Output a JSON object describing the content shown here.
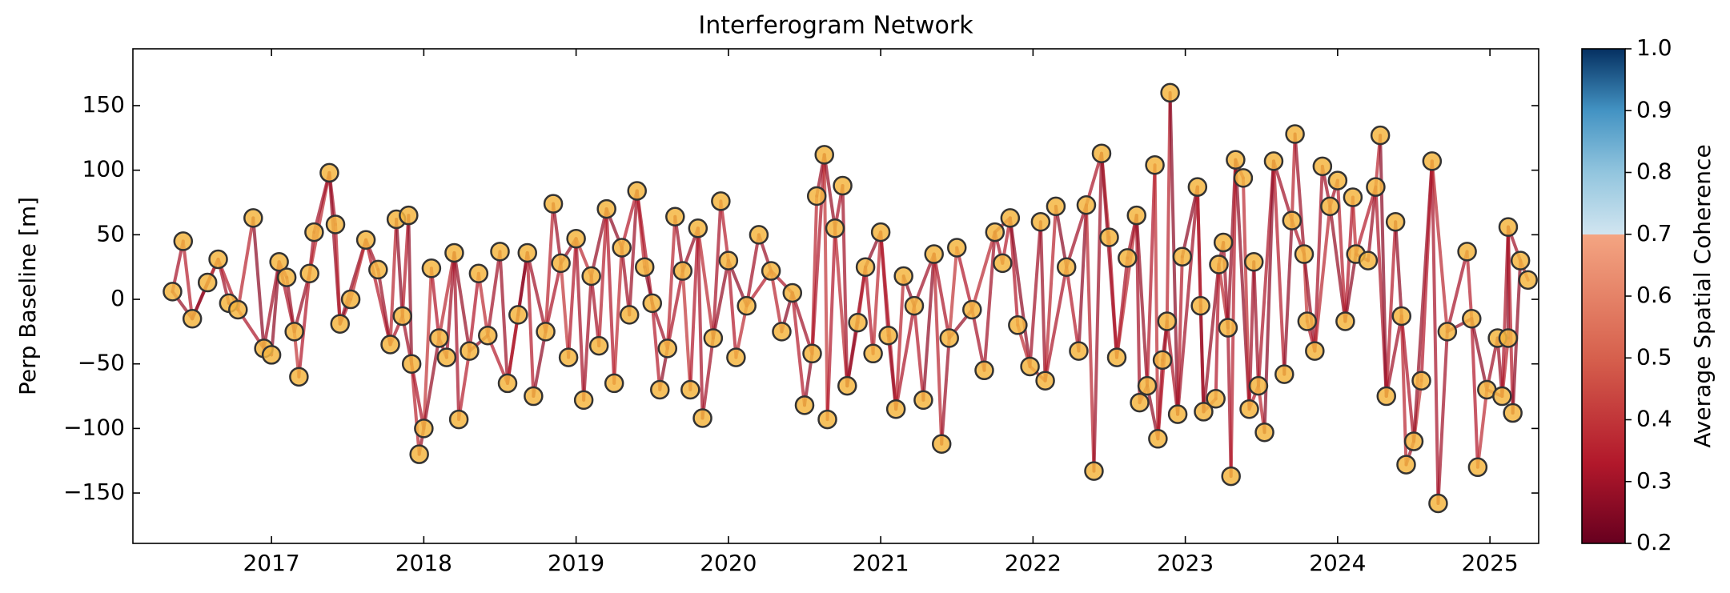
{
  "chart_data": {
    "type": "network",
    "title": "Interferogram Network",
    "ylabel": "Perp Baseline [m]",
    "x": [
      2016.35,
      2016.42,
      2016.48,
      2016.58,
      2016.65,
      2016.72,
      2016.78,
      2016.88,
      2016.95,
      2017.0,
      2017.05,
      2017.1,
      2017.15,
      2017.18,
      2017.25,
      2017.28,
      2017.38,
      2017.42,
      2017.45,
      2017.52,
      2017.62,
      2017.7,
      2017.78,
      2017.82,
      2017.86,
      2017.9,
      2017.92,
      2017.97,
      2018.0,
      2018.05,
      2018.1,
      2018.15,
      2018.2,
      2018.23,
      2018.3,
      2018.36,
      2018.42,
      2018.5,
      2018.55,
      2018.62,
      2018.68,
      2018.72,
      2018.8,
      2018.85,
      2018.9,
      2018.95,
      2019.0,
      2019.05,
      2019.1,
      2019.15,
      2019.2,
      2019.25,
      2019.3,
      2019.35,
      2019.4,
      2019.45,
      2019.5,
      2019.55,
      2019.6,
      2019.65,
      2019.7,
      2019.75,
      2019.8,
      2019.83,
      2019.9,
      2019.95,
      2020.0,
      2020.05,
      2020.12,
      2020.2,
      2020.28,
      2020.35,
      2020.42,
      2020.5,
      2020.55,
      2020.58,
      2020.63,
      2020.65,
      2020.7,
      2020.75,
      2020.78,
      2020.85,
      2020.9,
      2020.95,
      2021.0,
      2021.05,
      2021.1,
      2021.15,
      2021.22,
      2021.28,
      2021.35,
      2021.4,
      2021.45,
      2021.5,
      2021.6,
      2021.68,
      2021.75,
      2021.8,
      2021.85,
      2021.9,
      2021.98,
      2022.05,
      2022.08,
      2022.15,
      2022.22,
      2022.3,
      2022.35,
      2022.4,
      2022.45,
      2022.5,
      2022.55,
      2022.62,
      2022.68,
      2022.7,
      2022.75,
      2022.8,
      2022.82,
      2022.85,
      2022.88,
      2022.9,
      2022.95,
      2022.98,
      2023.08,
      2023.1,
      2023.12,
      2023.2,
      2023.22,
      2023.25,
      2023.28,
      2023.3,
      2023.33,
      2023.38,
      2023.42,
      2023.45,
      2023.48,
      2023.52,
      2023.58,
      2023.65,
      2023.7,
      2023.72,
      2023.78,
      2023.8,
      2023.85,
      2023.9,
      2023.95,
      2024.0,
      2024.05,
      2024.1,
      2024.12,
      2024.2,
      2024.25,
      2024.28,
      2024.32,
      2024.38,
      2024.42,
      2024.45,
      2024.5,
      2024.55,
      2024.62,
      2024.66,
      2024.72,
      2024.85,
      2024.88,
      2024.92,
      2024.98,
      2025.05,
      2025.08,
      2025.12,
      2025.12,
      2025.15,
      2025.2,
      2025.25
    ],
    "values": [
      6,
      45,
      -15,
      13,
      31,
      -3,
      -8,
      63,
      -38,
      -43,
      29,
      17,
      -25,
      -60,
      20,
      52,
      98,
      58,
      -19,
      0,
      46,
      23,
      -35,
      62,
      -13,
      65,
      -50,
      -120,
      -100,
      24,
      -30,
      -45,
      36,
      -93,
      -40,
      20,
      -28,
      37,
      -65,
      -12,
      36,
      -75,
      -25,
      74,
      28,
      -45,
      47,
      -78,
      18,
      -36,
      70,
      -65,
      40,
      -12,
      84,
      25,
      -3,
      -70,
      -38,
      64,
      22,
      -70,
      55,
      -92,
      -30,
      76,
      30,
      -45,
      -5,
      50,
      22,
      -25,
      5,
      -82,
      -42,
      80,
      112,
      -93,
      55,
      88,
      -67,
      -18,
      25,
      -42,
      52,
      -28,
      -85,
      18,
      -5,
      -78,
      35,
      -112,
      -30,
      40,
      -8,
      -55,
      52,
      28,
      63,
      -20,
      -52,
      60,
      -63,
      72,
      25,
      -40,
      73,
      -133,
      113,
      48,
      -45,
      32,
      65,
      -80,
      -67,
      104,
      -108,
      -47,
      -17,
      160,
      -89,
      33,
      87,
      -5,
      -87,
      -77,
      27,
      44,
      -22,
      -137,
      108,
      94,
      -85,
      29,
      -67,
      -103,
      107,
      -58,
      61,
      128,
      35,
      -17,
      -40,
      103,
      72,
      92,
      -17,
      79,
      35,
      30,
      87,
      127,
      -75,
      60,
      -13,
      -128,
      -110,
      -63,
      107,
      -158,
      -25,
      37,
      -15,
      -130,
      -70,
      -30,
      -75,
      -30,
      56,
      -88,
      30,
      15
    ],
    "edges": [
      [
        0,
        1,
        0.31
      ],
      [
        0,
        2,
        0.28
      ],
      [
        1,
        2,
        0.35
      ],
      [
        2,
        3,
        0.33
      ],
      [
        2,
        4,
        0.27
      ],
      [
        3,
        4,
        0.38
      ],
      [
        4,
        5,
        0.3
      ],
      [
        4,
        6,
        0.34
      ],
      [
        5,
        6,
        0.29
      ],
      [
        6,
        7,
        0.36
      ],
      [
        6,
        8,
        0.32
      ],
      [
        7,
        8,
        0.26
      ],
      [
        8,
        9,
        0.34
      ],
      [
        8,
        10,
        0.3
      ],
      [
        9,
        10,
        0.27
      ],
      [
        10,
        11,
        0.36
      ],
      [
        10,
        12,
        0.32
      ],
      [
        11,
        12,
        0.29
      ],
      [
        12,
        13,
        0.4
      ],
      [
        12,
        14,
        0.28
      ],
      [
        13,
        14,
        0.33
      ],
      [
        14,
        15,
        0.31
      ],
      [
        14,
        16,
        0.37
      ],
      [
        15,
        16,
        0.3
      ],
      [
        16,
        17,
        0.31
      ],
      [
        16,
        18,
        0.28
      ],
      [
        17,
        18,
        0.35
      ],
      [
        18,
        19,
        0.33
      ],
      [
        18,
        20,
        0.27
      ],
      [
        19,
        20,
        0.38
      ],
      [
        20,
        21,
        0.3
      ],
      [
        20,
        22,
        0.34
      ],
      [
        21,
        22,
        0.29
      ],
      [
        22,
        23,
        0.36
      ],
      [
        22,
        24,
        0.32
      ],
      [
        23,
        24,
        0.26
      ],
      [
        24,
        25,
        0.34
      ],
      [
        24,
        26,
        0.3
      ],
      [
        25,
        26,
        0.27
      ],
      [
        26,
        27,
        0.36
      ],
      [
        26,
        28,
        0.32
      ],
      [
        27,
        28,
        0.29
      ],
      [
        28,
        29,
        0.4
      ],
      [
        28,
        30,
        0.28
      ],
      [
        29,
        30,
        0.33
      ],
      [
        30,
        31,
        0.31
      ],
      [
        30,
        32,
        0.37
      ],
      [
        31,
        32,
        0.3
      ],
      [
        32,
        33,
        0.31
      ],
      [
        32,
        34,
        0.28
      ],
      [
        33,
        34,
        0.35
      ],
      [
        34,
        35,
        0.33
      ],
      [
        34,
        36,
        0.27
      ],
      [
        35,
        36,
        0.38
      ],
      [
        36,
        37,
        0.3
      ],
      [
        36,
        38,
        0.34
      ],
      [
        37,
        38,
        0.29
      ],
      [
        38,
        39,
        0.36
      ],
      [
        38,
        40,
        0.32
      ],
      [
        39,
        40,
        0.26
      ],
      [
        40,
        41,
        0.34
      ],
      [
        40,
        42,
        0.3
      ],
      [
        41,
        42,
        0.27
      ],
      [
        42,
        43,
        0.36
      ],
      [
        42,
        44,
        0.32
      ],
      [
        43,
        44,
        0.29
      ],
      [
        44,
        45,
        0.4
      ],
      [
        44,
        46,
        0.28
      ],
      [
        45,
        46,
        0.33
      ],
      [
        46,
        47,
        0.31
      ],
      [
        46,
        48,
        0.37
      ],
      [
        47,
        48,
        0.3
      ],
      [
        48,
        49,
        0.31
      ],
      [
        48,
        50,
        0.28
      ],
      [
        49,
        50,
        0.35
      ],
      [
        50,
        51,
        0.33
      ],
      [
        50,
        52,
        0.27
      ],
      [
        51,
        52,
        0.38
      ],
      [
        52,
        53,
        0.3
      ],
      [
        52,
        54,
        0.34
      ],
      [
        53,
        54,
        0.29
      ],
      [
        54,
        55,
        0.36
      ],
      [
        54,
        56,
        0.32
      ],
      [
        55,
        56,
        0.26
      ],
      [
        56,
        57,
        0.34
      ],
      [
        56,
        58,
        0.3
      ],
      [
        57,
        58,
        0.27
      ],
      [
        58,
        59,
        0.36
      ],
      [
        58,
        60,
        0.32
      ],
      [
        59,
        60,
        0.29
      ],
      [
        60,
        61,
        0.4
      ],
      [
        60,
        62,
        0.28
      ],
      [
        61,
        62,
        0.33
      ],
      [
        62,
        63,
        0.31
      ],
      [
        62,
        64,
        0.37
      ],
      [
        63,
        64,
        0.3
      ],
      [
        64,
        65,
        0.31
      ],
      [
        64,
        66,
        0.28
      ],
      [
        65,
        66,
        0.35
      ],
      [
        66,
        67,
        0.33
      ],
      [
        66,
        68,
        0.27
      ],
      [
        67,
        68,
        0.38
      ],
      [
        68,
        69,
        0.3
      ],
      [
        68,
        70,
        0.34
      ],
      [
        69,
        70,
        0.29
      ],
      [
        70,
        71,
        0.36
      ],
      [
        70,
        72,
        0.32
      ],
      [
        71,
        72,
        0.26
      ],
      [
        72,
        73,
        0.34
      ],
      [
        72,
        74,
        0.3
      ],
      [
        73,
        74,
        0.27
      ],
      [
        74,
        75,
        0.36
      ],
      [
        74,
        76,
        0.32
      ],
      [
        75,
        76,
        0.29
      ],
      [
        76,
        77,
        0.4
      ],
      [
        76,
        78,
        0.28
      ],
      [
        77,
        78,
        0.33
      ],
      [
        78,
        79,
        0.31
      ],
      [
        78,
        80,
        0.37
      ],
      [
        79,
        80,
        0.3
      ],
      [
        80,
        81,
        0.31
      ],
      [
        80,
        82,
        0.28
      ],
      [
        81,
        82,
        0.35
      ],
      [
        82,
        83,
        0.33
      ],
      [
        82,
        84,
        0.27
      ],
      [
        83,
        84,
        0.38
      ],
      [
        84,
        85,
        0.3
      ],
      [
        84,
        86,
        0.34
      ],
      [
        85,
        86,
        0.29
      ],
      [
        86,
        87,
        0.36
      ],
      [
        86,
        88,
        0.32
      ],
      [
        87,
        88,
        0.26
      ],
      [
        88,
        89,
        0.34
      ],
      [
        88,
        90,
        0.3
      ],
      [
        89,
        90,
        0.27
      ],
      [
        90,
        91,
        0.36
      ],
      [
        90,
        92,
        0.32
      ],
      [
        91,
        92,
        0.29
      ],
      [
        92,
        93,
        0.4
      ],
      [
        92,
        94,
        0.28
      ],
      [
        93,
        94,
        0.33
      ],
      [
        94,
        95,
        0.31
      ],
      [
        94,
        96,
        0.37
      ],
      [
        95,
        96,
        0.3
      ],
      [
        96,
        97,
        0.31
      ],
      [
        96,
        98,
        0.28
      ],
      [
        97,
        98,
        0.35
      ],
      [
        98,
        99,
        0.33
      ],
      [
        98,
        100,
        0.27
      ],
      [
        99,
        100,
        0.38
      ],
      [
        100,
        101,
        0.3
      ],
      [
        100,
        102,
        0.34
      ],
      [
        101,
        102,
        0.29
      ],
      [
        102,
        103,
        0.36
      ],
      [
        102,
        104,
        0.32
      ],
      [
        103,
        104,
        0.26
      ],
      [
        104,
        105,
        0.34
      ],
      [
        104,
        106,
        0.3
      ],
      [
        105,
        106,
        0.27
      ],
      [
        106,
        107,
        0.36
      ],
      [
        106,
        108,
        0.32
      ],
      [
        107,
        108,
        0.29
      ],
      [
        108,
        109,
        0.4
      ],
      [
        108,
        110,
        0.28
      ],
      [
        109,
        110,
        0.33
      ],
      [
        110,
        111,
        0.31
      ],
      [
        110,
        112,
        0.37
      ],
      [
        111,
        112,
        0.3
      ],
      [
        112,
        113,
        0.31
      ],
      [
        112,
        114,
        0.28
      ],
      [
        113,
        114,
        0.35
      ],
      [
        114,
        115,
        0.33
      ],
      [
        114,
        116,
        0.27
      ],
      [
        115,
        116,
        0.38
      ],
      [
        116,
        117,
        0.3
      ],
      [
        116,
        118,
        0.34
      ],
      [
        117,
        118,
        0.29
      ],
      [
        118,
        119,
        0.36
      ],
      [
        118,
        120,
        0.32
      ],
      [
        119,
        120,
        0.26
      ],
      [
        120,
        121,
        0.34
      ],
      [
        120,
        122,
        0.3
      ],
      [
        121,
        122,
        0.27
      ],
      [
        122,
        123,
        0.36
      ],
      [
        122,
        124,
        0.32
      ],
      [
        123,
        124,
        0.29
      ],
      [
        124,
        125,
        0.4
      ],
      [
        124,
        126,
        0.28
      ],
      [
        125,
        126,
        0.33
      ],
      [
        126,
        127,
        0.31
      ],
      [
        126,
        128,
        0.37
      ],
      [
        127,
        128,
        0.3
      ],
      [
        128,
        129,
        0.31
      ],
      [
        128,
        130,
        0.28
      ],
      [
        129,
        130,
        0.35
      ],
      [
        130,
        131,
        0.33
      ],
      [
        130,
        132,
        0.27
      ],
      [
        131,
        132,
        0.38
      ],
      [
        132,
        133,
        0.3
      ],
      [
        132,
        134,
        0.34
      ],
      [
        133,
        134,
        0.29
      ],
      [
        134,
        135,
        0.36
      ],
      [
        134,
        136,
        0.32
      ],
      [
        135,
        136,
        0.26
      ],
      [
        136,
        137,
        0.34
      ],
      [
        136,
        138,
        0.3
      ],
      [
        137,
        138,
        0.27
      ],
      [
        138,
        139,
        0.36
      ],
      [
        138,
        140,
        0.32
      ],
      [
        139,
        140,
        0.29
      ],
      [
        140,
        141,
        0.4
      ],
      [
        140,
        142,
        0.28
      ],
      [
        141,
        142,
        0.33
      ],
      [
        142,
        143,
        0.31
      ],
      [
        142,
        144,
        0.37
      ],
      [
        143,
        144,
        0.3
      ],
      [
        144,
        145,
        0.31
      ],
      [
        144,
        146,
        0.28
      ],
      [
        145,
        146,
        0.35
      ],
      [
        146,
        147,
        0.33
      ],
      [
        146,
        148,
        0.27
      ],
      [
        147,
        148,
        0.38
      ],
      [
        148,
        149,
        0.3
      ],
      [
        148,
        150,
        0.34
      ],
      [
        149,
        150,
        0.29
      ],
      [
        150,
        151,
        0.36
      ],
      [
        150,
        152,
        0.32
      ],
      [
        151,
        152,
        0.26
      ],
      [
        152,
        153,
        0.34
      ],
      [
        152,
        154,
        0.3
      ],
      [
        153,
        154,
        0.27
      ],
      [
        154,
        155,
        0.36
      ],
      [
        154,
        156,
        0.32
      ],
      [
        155,
        156,
        0.29
      ],
      [
        156,
        157,
        0.4
      ],
      [
        156,
        158,
        0.28
      ],
      [
        157,
        158,
        0.33
      ],
      [
        158,
        159,
        0.31
      ],
      [
        158,
        160,
        0.37
      ],
      [
        159,
        160,
        0.3
      ],
      [
        160,
        161,
        0.31
      ],
      [
        160,
        162,
        0.28
      ],
      [
        161,
        162,
        0.35
      ],
      [
        162,
        163,
        0.33
      ],
      [
        162,
        164,
        0.27
      ],
      [
        163,
        164,
        0.38
      ],
      [
        164,
        165,
        0.3
      ],
      [
        164,
        166,
        0.34
      ],
      [
        165,
        166,
        0.29
      ],
      [
        166,
        167,
        0.36
      ],
      [
        166,
        168,
        0.32
      ],
      [
        167,
        168,
        0.26
      ],
      [
        168,
        169,
        0.34
      ],
      [
        168,
        170,
        0.3
      ],
      [
        169,
        170,
        0.27
      ],
      [
        170,
        171,
        0.36
      ]
    ],
    "node_color": "#f5b642",
    "node_edge_color": "#333333",
    "xlim": [
      2016.09,
      2025.32
    ],
    "xticks": [
      2017,
      2018,
      2019,
      2020,
      2021,
      2022,
      2023,
      2024,
      2025
    ],
    "ylim": [
      -189,
      194
    ],
    "yticks": [
      {
        "value": -150,
        "label": "−150"
      },
      {
        "value": -100,
        "label": "−100"
      },
      {
        "value": -50,
        "label": "−50"
      },
      0,
      50,
      100,
      150
    ],
    "colorbar": {
      "label": "Average Spatial Coherence",
      "lim": [
        0.2,
        1.0
      ],
      "ticks": [
        0.2,
        0.3,
        0.4,
        0.5,
        0.6,
        0.7,
        0.8,
        0.9,
        {
          "value": 1.0,
          "label": "1.0"
        }
      ],
      "colormap": [
        [
          0.2,
          "#67001f"
        ],
        [
          0.33,
          "#b2182b"
        ],
        [
          0.5,
          "#d6604d"
        ],
        [
          0.7,
          "#f4a582"
        ],
        [
          0.7,
          "#d1e5f0"
        ],
        [
          0.8,
          "#92c5de"
        ],
        [
          0.9,
          "#4393c3"
        ],
        [
          1.0,
          "#053061"
        ]
      ]
    }
  }
}
